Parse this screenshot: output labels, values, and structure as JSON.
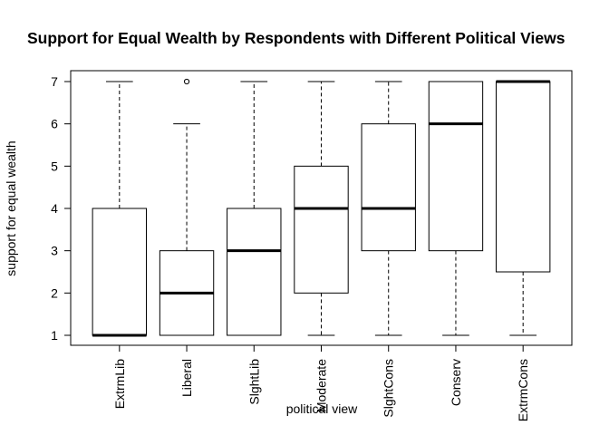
{
  "chart_data": {
    "type": "boxplot",
    "title": "Support for Equal Wealth by Respondents with Different Political Views",
    "xlabel": "political view",
    "ylabel": "support for equal wealth",
    "ylim": [
      1,
      7
    ],
    "yticks": [
      "1",
      "2",
      "3",
      "4",
      "5",
      "6",
      "7"
    ],
    "grid": false,
    "categories": [
      "ExtrmLib",
      "Liberal",
      "SlghtLib",
      "Moderate",
      "SlghtCons",
      "Conserv",
      "ExtrmCons"
    ],
    "boxes": [
      {
        "category": "ExtrmLib",
        "whisker_low": 1,
        "q1": 1,
        "median": 1,
        "q3": 4,
        "whisker_high": 7,
        "outliers": []
      },
      {
        "category": "Liberal",
        "whisker_low": 1,
        "q1": 1,
        "median": 2,
        "q3": 3,
        "whisker_high": 6,
        "outliers": [
          7
        ]
      },
      {
        "category": "SlghtLib",
        "whisker_low": 1,
        "q1": 1,
        "median": 3,
        "q3": 4,
        "whisker_high": 7,
        "outliers": []
      },
      {
        "category": "Moderate",
        "whisker_low": 1,
        "q1": 2,
        "median": 4,
        "q3": 5,
        "whisker_high": 7,
        "outliers": []
      },
      {
        "category": "SlghtCons",
        "whisker_low": 1,
        "q1": 3,
        "median": 4,
        "q3": 6,
        "whisker_high": 7,
        "outliers": []
      },
      {
        "category": "Conserv",
        "whisker_low": 1,
        "q1": 3,
        "median": 6,
        "q3": 7,
        "whisker_high": 7,
        "outliers": []
      },
      {
        "category": "ExtrmCons",
        "whisker_low": 1,
        "q1": 2.5,
        "median": 7,
        "q3": 7,
        "whisker_high": 7,
        "outliers": []
      }
    ]
  }
}
